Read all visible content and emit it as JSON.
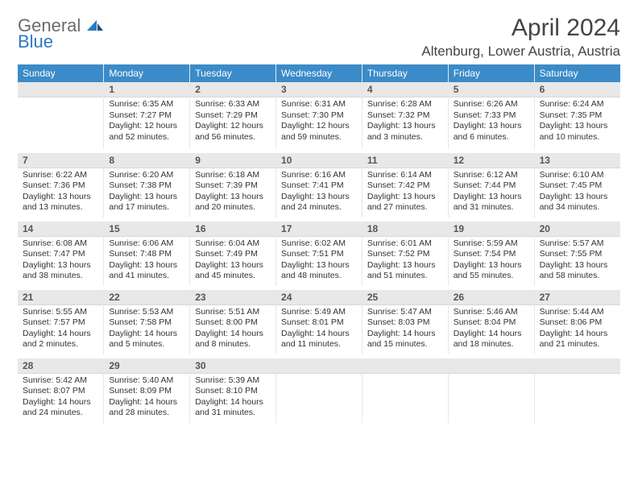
{
  "brand": {
    "line1": "General",
    "line2": "Blue"
  },
  "title": "April 2024",
  "location": "Altenburg, Lower Austria, Austria",
  "colors": {
    "header_bg": "#3b8bc9",
    "header_text": "#ffffff",
    "daynum_bg": "#e8e8e8",
    "daynum_text": "#555555",
    "body_text": "#333333",
    "logo_gray": "#6b6b6b",
    "logo_blue": "#2b7ac0",
    "cell_border": "#e7e7e7"
  },
  "typography": {
    "title_fontsize": 30,
    "location_fontsize": 17,
    "header_fontsize": 12,
    "daynum_fontsize": 12,
    "cell_fontsize": 10.5
  },
  "day_headers": [
    "Sunday",
    "Monday",
    "Tuesday",
    "Wednesday",
    "Thursday",
    "Friday",
    "Saturday"
  ],
  "weeks": [
    [
      {
        "num": "",
        "sunrise": "",
        "sunset": "",
        "daylight": ""
      },
      {
        "num": "1",
        "sunrise": "Sunrise: 6:35 AM",
        "sunset": "Sunset: 7:27 PM",
        "daylight": "Daylight: 12 hours and 52 minutes."
      },
      {
        "num": "2",
        "sunrise": "Sunrise: 6:33 AM",
        "sunset": "Sunset: 7:29 PM",
        "daylight": "Daylight: 12 hours and 56 minutes."
      },
      {
        "num": "3",
        "sunrise": "Sunrise: 6:31 AM",
        "sunset": "Sunset: 7:30 PM",
        "daylight": "Daylight: 12 hours and 59 minutes."
      },
      {
        "num": "4",
        "sunrise": "Sunrise: 6:28 AM",
        "sunset": "Sunset: 7:32 PM",
        "daylight": "Daylight: 13 hours and 3 minutes."
      },
      {
        "num": "5",
        "sunrise": "Sunrise: 6:26 AM",
        "sunset": "Sunset: 7:33 PM",
        "daylight": "Daylight: 13 hours and 6 minutes."
      },
      {
        "num": "6",
        "sunrise": "Sunrise: 6:24 AM",
        "sunset": "Sunset: 7:35 PM",
        "daylight": "Daylight: 13 hours and 10 minutes."
      }
    ],
    [
      {
        "num": "7",
        "sunrise": "Sunrise: 6:22 AM",
        "sunset": "Sunset: 7:36 PM",
        "daylight": "Daylight: 13 hours and 13 minutes."
      },
      {
        "num": "8",
        "sunrise": "Sunrise: 6:20 AM",
        "sunset": "Sunset: 7:38 PM",
        "daylight": "Daylight: 13 hours and 17 minutes."
      },
      {
        "num": "9",
        "sunrise": "Sunrise: 6:18 AM",
        "sunset": "Sunset: 7:39 PM",
        "daylight": "Daylight: 13 hours and 20 minutes."
      },
      {
        "num": "10",
        "sunrise": "Sunrise: 6:16 AM",
        "sunset": "Sunset: 7:41 PM",
        "daylight": "Daylight: 13 hours and 24 minutes."
      },
      {
        "num": "11",
        "sunrise": "Sunrise: 6:14 AM",
        "sunset": "Sunset: 7:42 PM",
        "daylight": "Daylight: 13 hours and 27 minutes."
      },
      {
        "num": "12",
        "sunrise": "Sunrise: 6:12 AM",
        "sunset": "Sunset: 7:44 PM",
        "daylight": "Daylight: 13 hours and 31 minutes."
      },
      {
        "num": "13",
        "sunrise": "Sunrise: 6:10 AM",
        "sunset": "Sunset: 7:45 PM",
        "daylight": "Daylight: 13 hours and 34 minutes."
      }
    ],
    [
      {
        "num": "14",
        "sunrise": "Sunrise: 6:08 AM",
        "sunset": "Sunset: 7:47 PM",
        "daylight": "Daylight: 13 hours and 38 minutes."
      },
      {
        "num": "15",
        "sunrise": "Sunrise: 6:06 AM",
        "sunset": "Sunset: 7:48 PM",
        "daylight": "Daylight: 13 hours and 41 minutes."
      },
      {
        "num": "16",
        "sunrise": "Sunrise: 6:04 AM",
        "sunset": "Sunset: 7:49 PM",
        "daylight": "Daylight: 13 hours and 45 minutes."
      },
      {
        "num": "17",
        "sunrise": "Sunrise: 6:02 AM",
        "sunset": "Sunset: 7:51 PM",
        "daylight": "Daylight: 13 hours and 48 minutes."
      },
      {
        "num": "18",
        "sunrise": "Sunrise: 6:01 AM",
        "sunset": "Sunset: 7:52 PM",
        "daylight": "Daylight: 13 hours and 51 minutes."
      },
      {
        "num": "19",
        "sunrise": "Sunrise: 5:59 AM",
        "sunset": "Sunset: 7:54 PM",
        "daylight": "Daylight: 13 hours and 55 minutes."
      },
      {
        "num": "20",
        "sunrise": "Sunrise: 5:57 AM",
        "sunset": "Sunset: 7:55 PM",
        "daylight": "Daylight: 13 hours and 58 minutes."
      }
    ],
    [
      {
        "num": "21",
        "sunrise": "Sunrise: 5:55 AM",
        "sunset": "Sunset: 7:57 PM",
        "daylight": "Daylight: 14 hours and 2 minutes."
      },
      {
        "num": "22",
        "sunrise": "Sunrise: 5:53 AM",
        "sunset": "Sunset: 7:58 PM",
        "daylight": "Daylight: 14 hours and 5 minutes."
      },
      {
        "num": "23",
        "sunrise": "Sunrise: 5:51 AM",
        "sunset": "Sunset: 8:00 PM",
        "daylight": "Daylight: 14 hours and 8 minutes."
      },
      {
        "num": "24",
        "sunrise": "Sunrise: 5:49 AM",
        "sunset": "Sunset: 8:01 PM",
        "daylight": "Daylight: 14 hours and 11 minutes."
      },
      {
        "num": "25",
        "sunrise": "Sunrise: 5:47 AM",
        "sunset": "Sunset: 8:03 PM",
        "daylight": "Daylight: 14 hours and 15 minutes."
      },
      {
        "num": "26",
        "sunrise": "Sunrise: 5:46 AM",
        "sunset": "Sunset: 8:04 PM",
        "daylight": "Daylight: 14 hours and 18 minutes."
      },
      {
        "num": "27",
        "sunrise": "Sunrise: 5:44 AM",
        "sunset": "Sunset: 8:06 PM",
        "daylight": "Daylight: 14 hours and 21 minutes."
      }
    ],
    [
      {
        "num": "28",
        "sunrise": "Sunrise: 5:42 AM",
        "sunset": "Sunset: 8:07 PM",
        "daylight": "Daylight: 14 hours and 24 minutes."
      },
      {
        "num": "29",
        "sunrise": "Sunrise: 5:40 AM",
        "sunset": "Sunset: 8:09 PM",
        "daylight": "Daylight: 14 hours and 28 minutes."
      },
      {
        "num": "30",
        "sunrise": "Sunrise: 5:39 AM",
        "sunset": "Sunset: 8:10 PM",
        "daylight": "Daylight: 14 hours and 31 minutes."
      },
      {
        "num": "",
        "sunrise": "",
        "sunset": "",
        "daylight": ""
      },
      {
        "num": "",
        "sunrise": "",
        "sunset": "",
        "daylight": ""
      },
      {
        "num": "",
        "sunrise": "",
        "sunset": "",
        "daylight": ""
      },
      {
        "num": "",
        "sunrise": "",
        "sunset": "",
        "daylight": ""
      }
    ]
  ]
}
